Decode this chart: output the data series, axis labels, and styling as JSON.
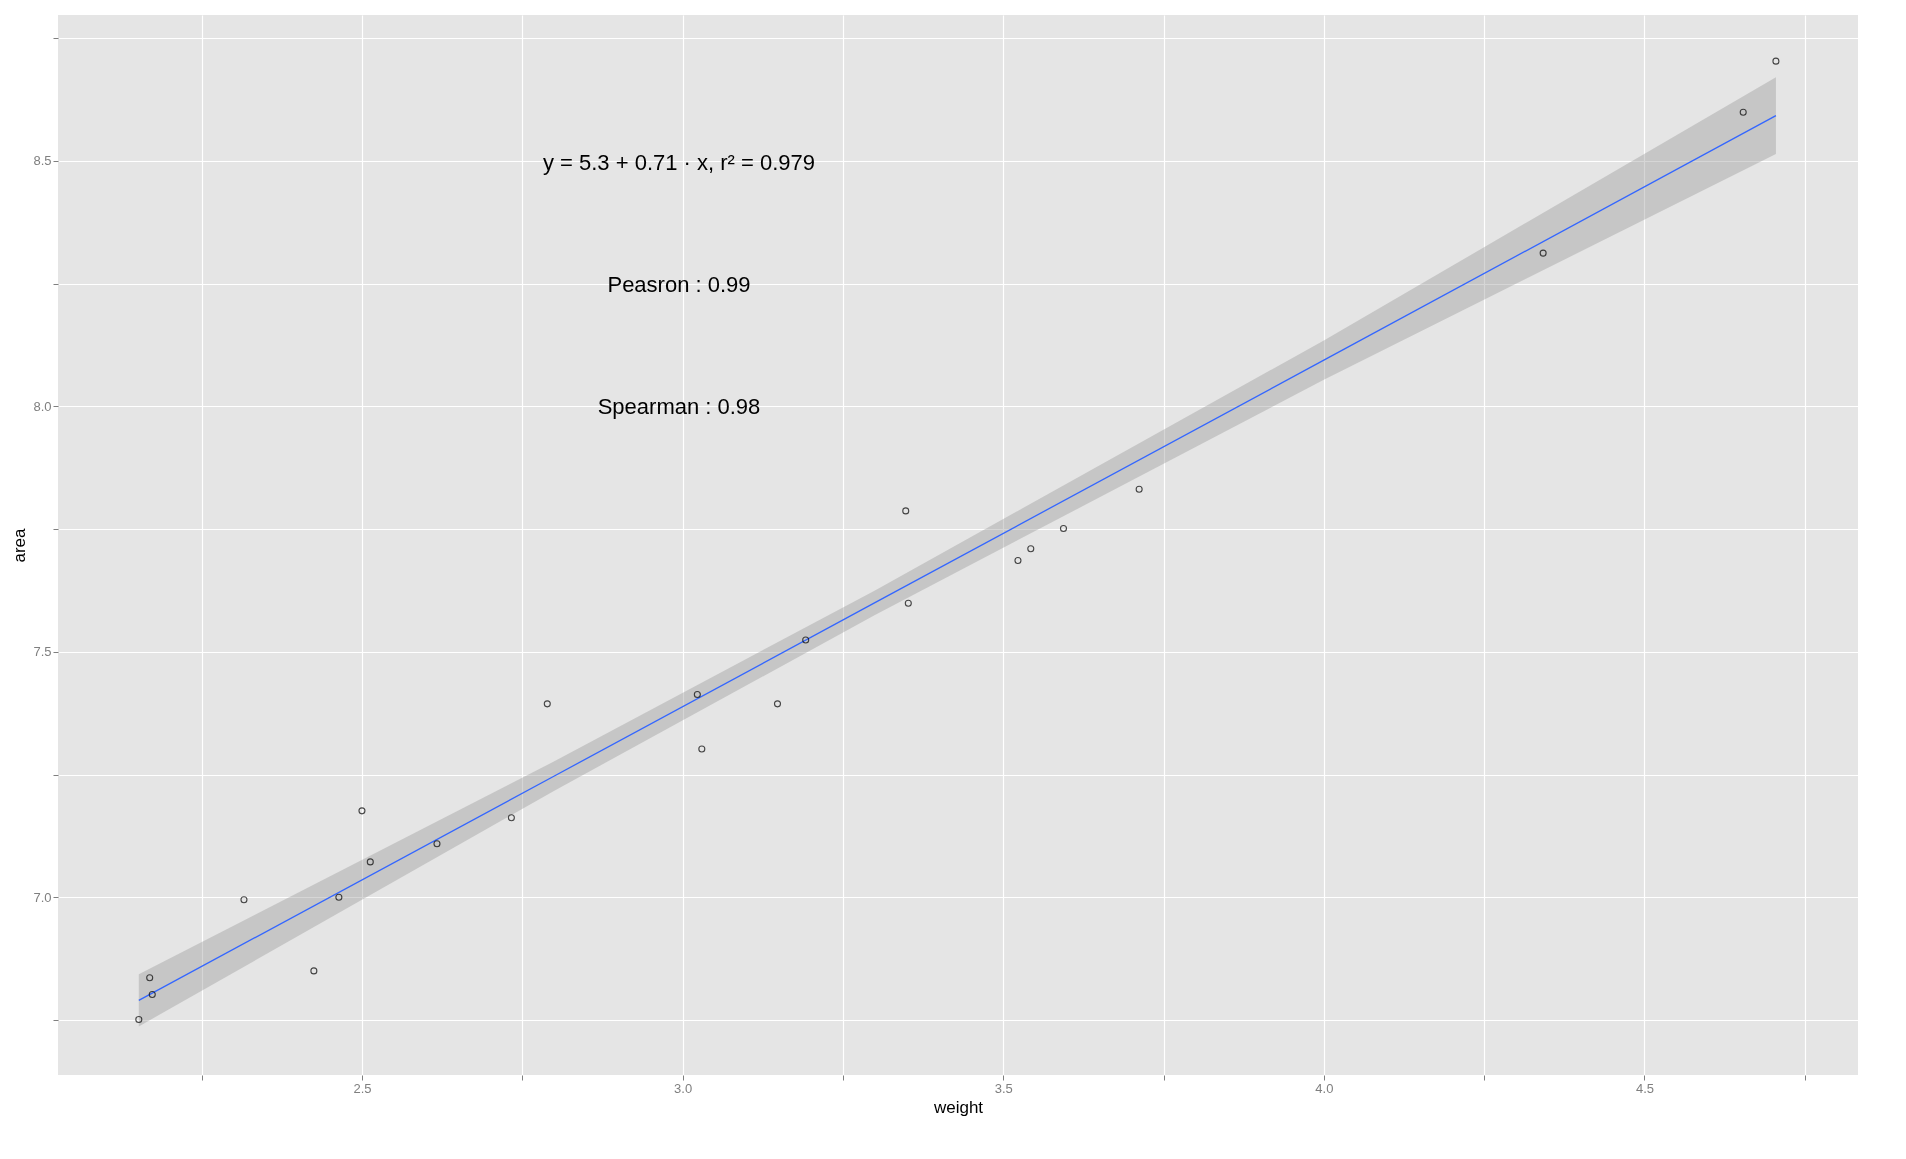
{
  "chart_data": {
    "type": "scatter",
    "xlabel": "weight",
    "ylabel": "area",
    "annotations": [
      "y = 5.3 + 0.71 · x,  r² = 0.979",
      "Peasron : 0.99",
      "Spearman : 0.98"
    ],
    "xlim": [
      2.026,
      4.833
    ],
    "ylim": [
      6.638,
      8.797
    ],
    "xticks": [
      {
        "value": 2.25,
        "label": null
      },
      2.5,
      {
        "value": 2.75,
        "label": null
      },
      {
        "value": 3,
        "label": "3.0"
      },
      {
        "value": 3.25,
        "label": null
      },
      3.5,
      {
        "value": 3.75,
        "label": null
      },
      {
        "value": 4,
        "label": "4.0"
      },
      {
        "value": 4.25,
        "label": null
      },
      4.5,
      {
        "value": 4.75,
        "label": null
      }
    ],
    "yticks": [
      {
        "value": 6.75,
        "label": null
      },
      {
        "value": 7,
        "label": "7.0"
      },
      {
        "value": 7.25,
        "label": null
      },
      7.5,
      {
        "value": 7.75,
        "label": null
      },
      {
        "value": 8,
        "label": "8.0"
      },
      {
        "value": 8.25,
        "label": null
      },
      8.5,
      {
        "value": 8.75,
        "label": null
      }
    ],
    "grid": true,
    "marker": "circle",
    "series": [
      {
        "type": "scatter",
        "color": "#000000",
        "x": [
          2.152,
          2.169,
          2.173,
          2.316,
          2.425,
          2.464,
          2.5,
          2.513,
          2.617,
          2.733,
          2.789,
          3.023,
          3.03,
          3.148,
          3.192,
          3.348,
          3.352,
          3.523,
          3.543,
          3.594,
          3.712,
          4.342,
          4.654,
          4.705
        ],
        "values": [
          6.751,
          6.836,
          6.802,
          6.995,
          6.85,
          7.0,
          7.176,
          7.072,
          7.109,
          7.162,
          7.394,
          7.413,
          7.302,
          7.394,
          7.524,
          7.787,
          7.599,
          7.686,
          7.71,
          7.751,
          7.831,
          8.312,
          8.599,
          8.703
        ]
      },
      {
        "type": "line",
        "color": "#3366ff",
        "marker": "none",
        "x": [
          2.152,
          2.8,
          3.3,
          4.0,
          4.705
        ],
        "values": [
          6.79,
          7.247,
          7.6,
          8.094,
          8.592
        ],
        "lower": [
          6.737,
          7.217,
          7.575,
          8.054,
          8.514
        ],
        "upper": [
          6.843,
          7.277,
          7.625,
          8.134,
          8.67
        ]
      }
    ]
  }
}
